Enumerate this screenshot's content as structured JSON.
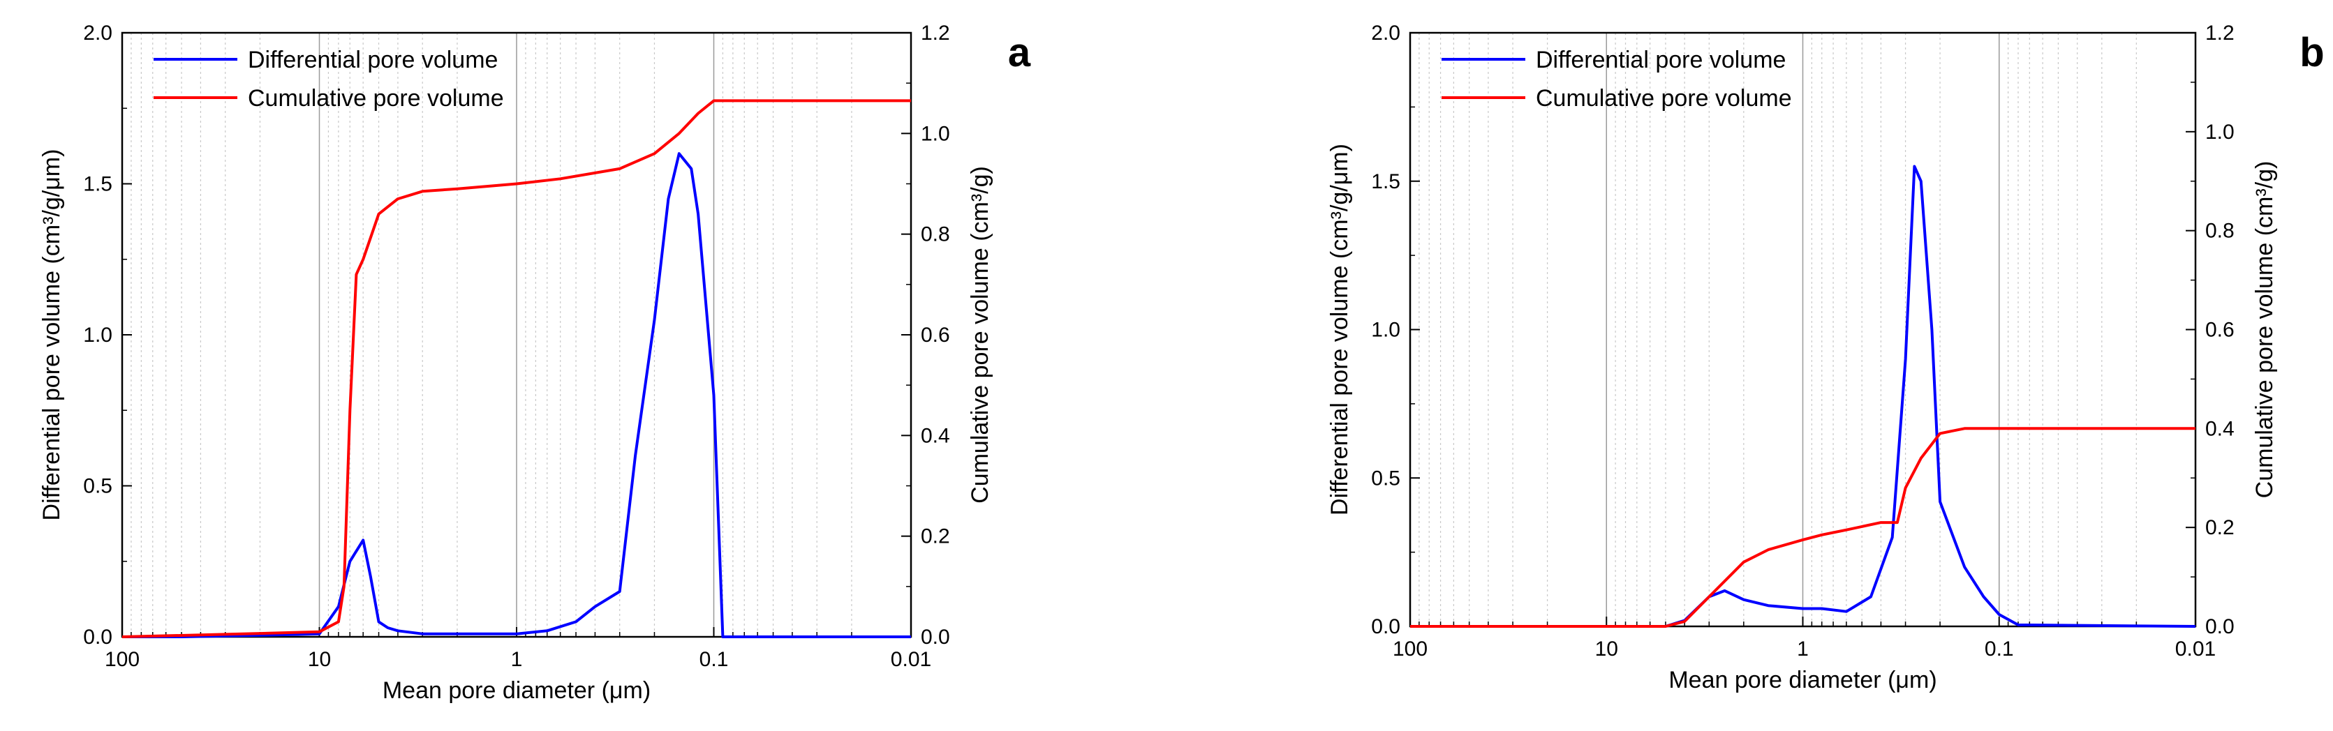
{
  "chart_data": [
    {
      "type": "line",
      "panel_label": "a",
      "xlabel": "Mean pore diameter (μm)",
      "ylabel_left": "Differential pore volume (cm³/g/μm)",
      "ylabel_right": "Cumulative pore volume (cm³/g)",
      "x_scale": "log",
      "x_reversed": true,
      "xlim": [
        100,
        0.01
      ],
      "ylim_left": [
        0,
        2.0
      ],
      "ylim_right": [
        0,
        1.2
      ],
      "x_ticks": [
        "100",
        "10",
        "1",
        "0.1",
        "0.01"
      ],
      "y_ticks_left": [
        "0.0",
        "0.5",
        "1.0",
        "1.5",
        "2.0"
      ],
      "y_ticks_right": [
        "0.0",
        "0.2",
        "0.4",
        "0.6",
        "0.8",
        "1.0",
        "1.2"
      ],
      "grid": "vertical log gridlines",
      "legend_position": "top-left",
      "series": [
        {
          "name": "Differential pore volume",
          "axis": "left",
          "color": "#0000ff",
          "x": [
            100,
            50,
            20,
            10,
            8,
            7,
            6,
            5.5,
            5,
            4.5,
            4,
            3,
            2,
            1,
            0.7,
            0.5,
            0.4,
            0.3,
            0.25,
            0.2,
            0.17,
            0.15,
            0.13,
            0.12,
            0.1,
            0.09,
            0.08,
            0.01
          ],
          "y": [
            0,
            0,
            0.005,
            0.01,
            0.1,
            0.25,
            0.32,
            0.2,
            0.05,
            0.03,
            0.02,
            0.01,
            0.01,
            0.01,
            0.02,
            0.05,
            0.1,
            0.15,
            0.6,
            1.05,
            1.45,
            1.6,
            1.55,
            1.4,
            0.8,
            0.0,
            0,
            0
          ]
        },
        {
          "name": "Cumulative pore volume",
          "axis": "right",
          "color": "#ff0000",
          "x": [
            100,
            30,
            10,
            8,
            7.5,
            7,
            6.5,
            6,
            5,
            4,
            3,
            2,
            1,
            0.6,
            0.3,
            0.2,
            0.15,
            0.12,
            0.1,
            0.01
          ],
          "y": [
            0,
            0.005,
            0.01,
            0.03,
            0.1,
            0.45,
            0.72,
            0.75,
            0.84,
            0.87,
            0.885,
            0.89,
            0.9,
            0.91,
            0.93,
            0.96,
            1.0,
            1.04,
            1.065,
            1.065
          ]
        }
      ]
    },
    {
      "type": "line",
      "panel_label": "b",
      "xlabel": "Mean pore diameter (μm)",
      "ylabel_left": "Differential pore volume (cm³/g/μm)",
      "ylabel_right": "Cumulative pore volume (cm³/g)",
      "x_scale": "log",
      "x_reversed": true,
      "xlim": [
        100,
        0.01
      ],
      "ylim_left": [
        0,
        2.0
      ],
      "ylim_right": [
        0,
        1.2
      ],
      "x_ticks": [
        "100",
        "10",
        "1",
        "0.1",
        "0.01"
      ],
      "y_ticks_left": [
        "0.0",
        "0.5",
        "1.0",
        "1.5",
        "2.0"
      ],
      "y_ticks_right": [
        "0.0",
        "0.2",
        "0.4",
        "0.6",
        "0.8",
        "1.0",
        "1.2"
      ],
      "grid": "vertical log gridlines",
      "legend_position": "top-left",
      "series": [
        {
          "name": "Differential pore volume",
          "axis": "left",
          "color": "#0000ff",
          "x": [
            100,
            5,
            4,
            3,
            2.5,
            2,
            1.5,
            1,
            0.8,
            0.6,
            0.45,
            0.35,
            0.3,
            0.27,
            0.25,
            0.22,
            0.2,
            0.15,
            0.12,
            0.1,
            0.08,
            0.01
          ],
          "y": [
            0,
            0,
            0.02,
            0.1,
            0.12,
            0.09,
            0.07,
            0.06,
            0.06,
            0.05,
            0.1,
            0.3,
            0.9,
            1.55,
            1.5,
            1.0,
            0.42,
            0.2,
            0.1,
            0.04,
            0.005,
            0
          ]
        },
        {
          "name": "Cumulative pore volume",
          "axis": "right",
          "color": "#ff0000",
          "x": [
            100,
            5,
            4,
            3,
            2,
            1.5,
            1,
            0.8,
            0.6,
            0.4,
            0.33,
            0.3,
            0.25,
            0.2,
            0.15,
            0.1,
            0.01
          ],
          "y": [
            0,
            0,
            0.01,
            0.06,
            0.13,
            0.155,
            0.175,
            0.185,
            0.195,
            0.21,
            0.21,
            0.28,
            0.34,
            0.39,
            0.4,
            0.4,
            0.4
          ]
        }
      ]
    }
  ]
}
